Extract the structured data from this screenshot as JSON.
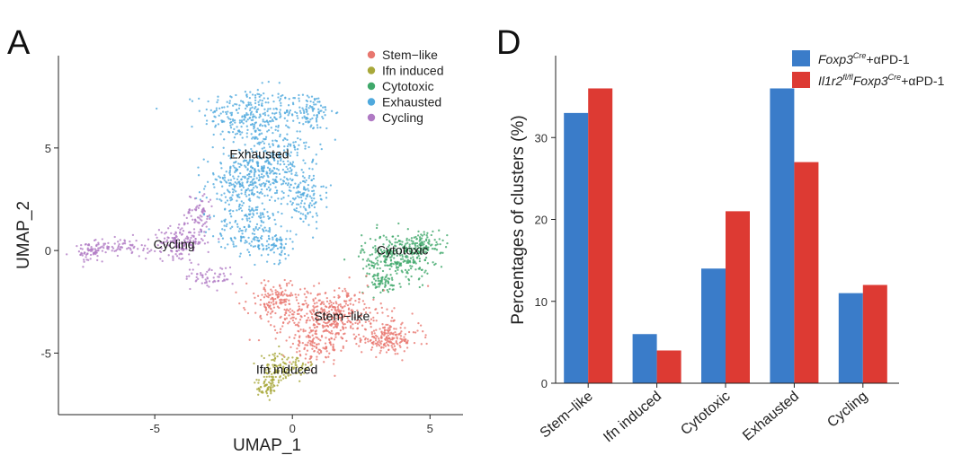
{
  "panels": {
    "a": {
      "letter": "A"
    },
    "d": {
      "letter": "D"
    }
  },
  "chart_data": [
    {
      "type": "scatter",
      "panel": "A",
      "xlabel": "UMAP_1",
      "ylabel": "UMAP_2",
      "xlim": [
        -8.5,
        6.2
      ],
      "ylim": [
        -8,
        9.5
      ],
      "xticks": [
        -5,
        0,
        5
      ],
      "yticks": [
        -5,
        0,
        5
      ],
      "xtick_labels": [
        "-5",
        "0",
        "5"
      ],
      "ytick_labels": [
        "-5",
        "0",
        "5"
      ],
      "grid": false,
      "legend_position": "top-right",
      "legend": [
        {
          "name": "Stem−like",
          "color": "#E8776F"
        },
        {
          "name": "Ifn induced",
          "color": "#A8A83A"
        },
        {
          "name": "Cytotoxic",
          "color": "#3FA86A"
        },
        {
          "name": "Exhausted",
          "color": "#4FA9DD"
        },
        {
          "name": "Cycling",
          "color": "#B07AC4"
        }
      ],
      "clusters": [
        {
          "label": "Stem−like",
          "label_at": [
            1.8,
            -3.4
          ],
          "color": "#E8776F"
        },
        {
          "label": "Ifn induced",
          "label_at": [
            -0.2,
            -6.0
          ],
          "color": "#A8A83A"
        },
        {
          "label": "Cytotoxic",
          "label_at": [
            4.0,
            -0.2
          ],
          "color": "#3FA86A"
        },
        {
          "label": "Exhausted",
          "label_at": [
            -1.2,
            4.5
          ],
          "color": "#4FA9DD"
        },
        {
          "label": "Cycling",
          "label_at": [
            -4.3,
            0.1
          ],
          "color": "#B07AC4"
        }
      ]
    },
    {
      "type": "bar",
      "panel": "D",
      "categories": [
        "Stem−like",
        "Ifn induced",
        "Cytotoxic",
        "Exhausted",
        "Cycling"
      ],
      "series": [
        {
          "name_main": "Foxp3",
          "name_sup": "Cre",
          "name_tail": "+αPD-1",
          "color": "#3A7CC9",
          "values": [
            33,
            6,
            14,
            36,
            11
          ]
        },
        {
          "name_main": "Il1r2",
          "name_sup": "fl/fl",
          "name_mid": "Foxp3",
          "name_sup2": "Cre",
          "name_tail": "+αPD-1",
          "color": "#DD3A33",
          "values": [
            36,
            4,
            21,
            27,
            12
          ]
        }
      ],
      "ylabel": "Percentages of clusters (%)",
      "xlabel": "",
      "ylim": [
        0,
        40
      ],
      "yticks": [
        0,
        10,
        20,
        30
      ],
      "ytick_labels": [
        "0",
        "10",
        "20",
        "30"
      ],
      "grid": false,
      "legend_position": "top-right"
    }
  ]
}
